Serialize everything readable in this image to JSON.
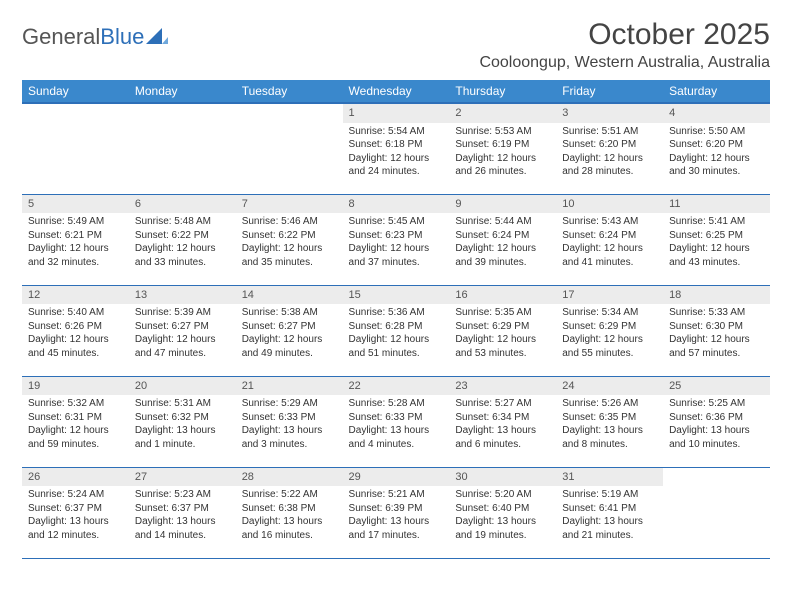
{
  "logo": {
    "text1": "General",
    "text2": "Blue"
  },
  "title": "October 2025",
  "subtitle": "Cooloongup, Western Australia, Australia",
  "colors": {
    "header_bg": "#3a88cc",
    "header_border": "#2d6fb8",
    "daynum_bg": "#ececec",
    "text": "#333333",
    "page_bg": "#ffffff"
  },
  "day_headers": [
    "Sunday",
    "Monday",
    "Tuesday",
    "Wednesday",
    "Thursday",
    "Friday",
    "Saturday"
  ],
  "weeks": [
    [
      null,
      null,
      null,
      {
        "n": "1",
        "sr": "5:54 AM",
        "ss": "6:18 PM",
        "dl": "12 hours and 24 minutes."
      },
      {
        "n": "2",
        "sr": "5:53 AM",
        "ss": "6:19 PM",
        "dl": "12 hours and 26 minutes."
      },
      {
        "n": "3",
        "sr": "5:51 AM",
        "ss": "6:20 PM",
        "dl": "12 hours and 28 minutes."
      },
      {
        "n": "4",
        "sr": "5:50 AM",
        "ss": "6:20 PM",
        "dl": "12 hours and 30 minutes."
      }
    ],
    [
      {
        "n": "5",
        "sr": "5:49 AM",
        "ss": "6:21 PM",
        "dl": "12 hours and 32 minutes."
      },
      {
        "n": "6",
        "sr": "5:48 AM",
        "ss": "6:22 PM",
        "dl": "12 hours and 33 minutes."
      },
      {
        "n": "7",
        "sr": "5:46 AM",
        "ss": "6:22 PM",
        "dl": "12 hours and 35 minutes."
      },
      {
        "n": "8",
        "sr": "5:45 AM",
        "ss": "6:23 PM",
        "dl": "12 hours and 37 minutes."
      },
      {
        "n": "9",
        "sr": "5:44 AM",
        "ss": "6:24 PM",
        "dl": "12 hours and 39 minutes."
      },
      {
        "n": "10",
        "sr": "5:43 AM",
        "ss": "6:24 PM",
        "dl": "12 hours and 41 minutes."
      },
      {
        "n": "11",
        "sr": "5:41 AM",
        "ss": "6:25 PM",
        "dl": "12 hours and 43 minutes."
      }
    ],
    [
      {
        "n": "12",
        "sr": "5:40 AM",
        "ss": "6:26 PM",
        "dl": "12 hours and 45 minutes."
      },
      {
        "n": "13",
        "sr": "5:39 AM",
        "ss": "6:27 PM",
        "dl": "12 hours and 47 minutes."
      },
      {
        "n": "14",
        "sr": "5:38 AM",
        "ss": "6:27 PM",
        "dl": "12 hours and 49 minutes."
      },
      {
        "n": "15",
        "sr": "5:36 AM",
        "ss": "6:28 PM",
        "dl": "12 hours and 51 minutes."
      },
      {
        "n": "16",
        "sr": "5:35 AM",
        "ss": "6:29 PM",
        "dl": "12 hours and 53 minutes."
      },
      {
        "n": "17",
        "sr": "5:34 AM",
        "ss": "6:29 PM",
        "dl": "12 hours and 55 minutes."
      },
      {
        "n": "18",
        "sr": "5:33 AM",
        "ss": "6:30 PM",
        "dl": "12 hours and 57 minutes."
      }
    ],
    [
      {
        "n": "19",
        "sr": "5:32 AM",
        "ss": "6:31 PM",
        "dl": "12 hours and 59 minutes."
      },
      {
        "n": "20",
        "sr": "5:31 AM",
        "ss": "6:32 PM",
        "dl": "13 hours and 1 minute."
      },
      {
        "n": "21",
        "sr": "5:29 AM",
        "ss": "6:33 PM",
        "dl": "13 hours and 3 minutes."
      },
      {
        "n": "22",
        "sr": "5:28 AM",
        "ss": "6:33 PM",
        "dl": "13 hours and 4 minutes."
      },
      {
        "n": "23",
        "sr": "5:27 AM",
        "ss": "6:34 PM",
        "dl": "13 hours and 6 minutes."
      },
      {
        "n": "24",
        "sr": "5:26 AM",
        "ss": "6:35 PM",
        "dl": "13 hours and 8 minutes."
      },
      {
        "n": "25",
        "sr": "5:25 AM",
        "ss": "6:36 PM",
        "dl": "13 hours and 10 minutes."
      }
    ],
    [
      {
        "n": "26",
        "sr": "5:24 AM",
        "ss": "6:37 PM",
        "dl": "13 hours and 12 minutes."
      },
      {
        "n": "27",
        "sr": "5:23 AM",
        "ss": "6:37 PM",
        "dl": "13 hours and 14 minutes."
      },
      {
        "n": "28",
        "sr": "5:22 AM",
        "ss": "6:38 PM",
        "dl": "13 hours and 16 minutes."
      },
      {
        "n": "29",
        "sr": "5:21 AM",
        "ss": "6:39 PM",
        "dl": "13 hours and 17 minutes."
      },
      {
        "n": "30",
        "sr": "5:20 AM",
        "ss": "6:40 PM",
        "dl": "13 hours and 19 minutes."
      },
      {
        "n": "31",
        "sr": "5:19 AM",
        "ss": "6:41 PM",
        "dl": "13 hours and 21 minutes."
      },
      null
    ]
  ],
  "labels": {
    "sunrise": "Sunrise:",
    "sunset": "Sunset:",
    "daylight": "Daylight:"
  }
}
